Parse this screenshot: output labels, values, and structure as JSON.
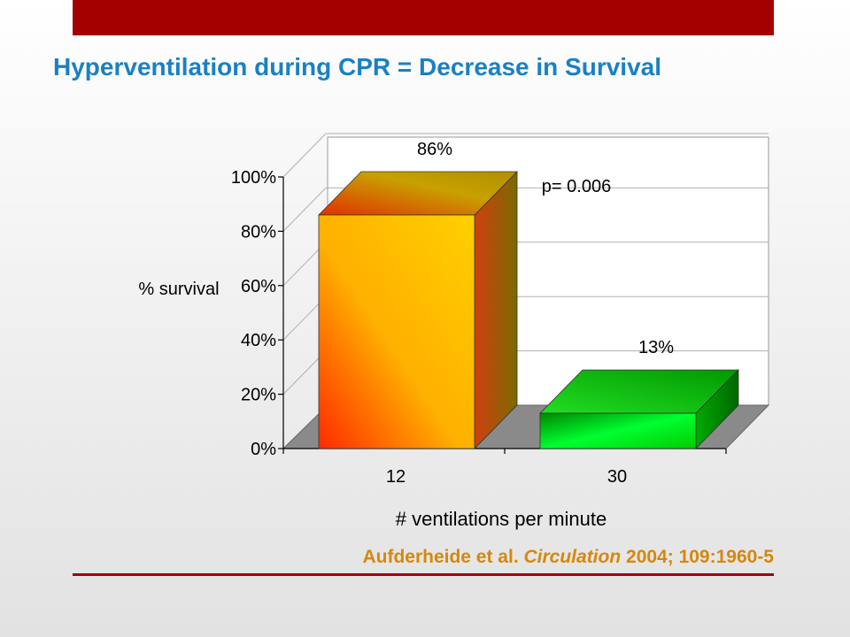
{
  "slide": {
    "title": "Hyperventilation during CPR = Decrease in Survival",
    "citation_authors": "Aufderheide et al. ",
    "citation_journal": "Circulation",
    "citation_rest": " 2004; 109:1960-5",
    "accent_color": "#a50000",
    "title_color": "#1a80c4",
    "citation_color": "#d4880f"
  },
  "chart_data": {
    "type": "bar",
    "categories": [
      "12",
      "30"
    ],
    "values": [
      86,
      13
    ],
    "data_labels": [
      "86%",
      "13%"
    ],
    "ylabel": "% survival",
    "xlabel": "# ventilations per minute",
    "ylim": [
      0,
      100
    ],
    "yticks": [
      "0%",
      "20%",
      "40%",
      "60%",
      "80%",
      "100%"
    ],
    "annotation": "p= 0.006",
    "grid": true,
    "bar_colors": [
      "#ffc800",
      "#00dd00"
    ]
  }
}
